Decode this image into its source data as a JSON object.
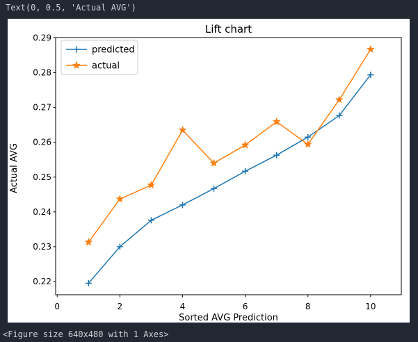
{
  "console": {
    "top_text": "Text(0, 0.5, 'Actual AVG')",
    "bottom_text": "<Figure size 640x480 with 1 Axes>"
  },
  "colors": {
    "background": "#222831",
    "console_text": "#ccd2d9",
    "figure_background": "#ffffff",
    "axis": "#000000",
    "predicted": "#1f77b4",
    "actual": "#ff7f0e",
    "legend_border": "#cccccc"
  },
  "chart_data": {
    "type": "line",
    "title": "Lift chart",
    "xlabel": "Sorted AVG Prediction",
    "ylabel": "Actual AVG",
    "x": [
      1,
      2,
      3,
      4,
      5,
      6,
      7,
      8,
      9,
      10
    ],
    "series": [
      {
        "name": "predicted",
        "color": "#1f77b4",
        "marker": "plus",
        "values": [
          0.2195,
          0.23,
          0.2376,
          0.242,
          0.2467,
          0.2517,
          0.2563,
          0.2615,
          0.2677,
          0.2794
        ]
      },
      {
        "name": "actual",
        "color": "#ff7f0e",
        "marker": "star",
        "values": [
          0.2313,
          0.2437,
          0.2477,
          0.2635,
          0.254,
          0.2592,
          0.2659,
          0.2594,
          0.2722,
          0.2867
        ]
      }
    ],
    "xticks": [
      0,
      2,
      4,
      6,
      8,
      10
    ],
    "yticks": [
      0.22,
      0.23,
      0.24,
      0.25,
      0.26,
      0.27,
      0.28,
      0.29
    ],
    "xlim": [
      -0.05,
      10.98
    ],
    "ylim": [
      0.2162,
      0.2901
    ],
    "grid": false,
    "legend_position": "upper left"
  }
}
